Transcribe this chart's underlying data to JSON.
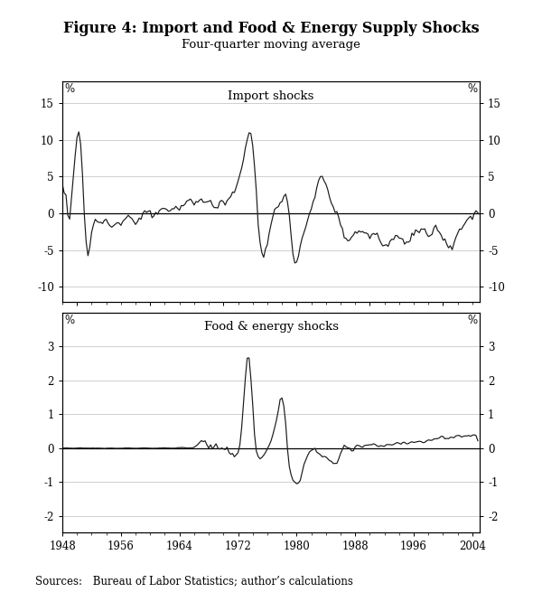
{
  "title": "Figure 4: Import and Food & Energy Supply Shocks",
  "subtitle": "Four-quarter moving average",
  "source_text": "Sources: Bureau of Labor Statistics; author’s calculations",
  "panel1_label": "Import shocks",
  "panel2_label": "Food & energy shocks",
  "xticklabels": [
    1948,
    1956,
    1964,
    1972,
    1980,
    1988,
    1996,
    2004
  ],
  "panel1_ylim": [
    -12,
    18
  ],
  "panel1_yticks": [
    -10,
    -5,
    0,
    5,
    10,
    15
  ],
  "panel2_ylim": [
    -2.5,
    4.0
  ],
  "panel2_yticks": [
    -2,
    -1,
    0,
    1,
    2,
    3
  ],
  "start_year": 1948,
  "end_year": 2005,
  "background_color": "#ffffff",
  "line_color": "#1a1a1a",
  "grid_color": "#c8c8c8"
}
